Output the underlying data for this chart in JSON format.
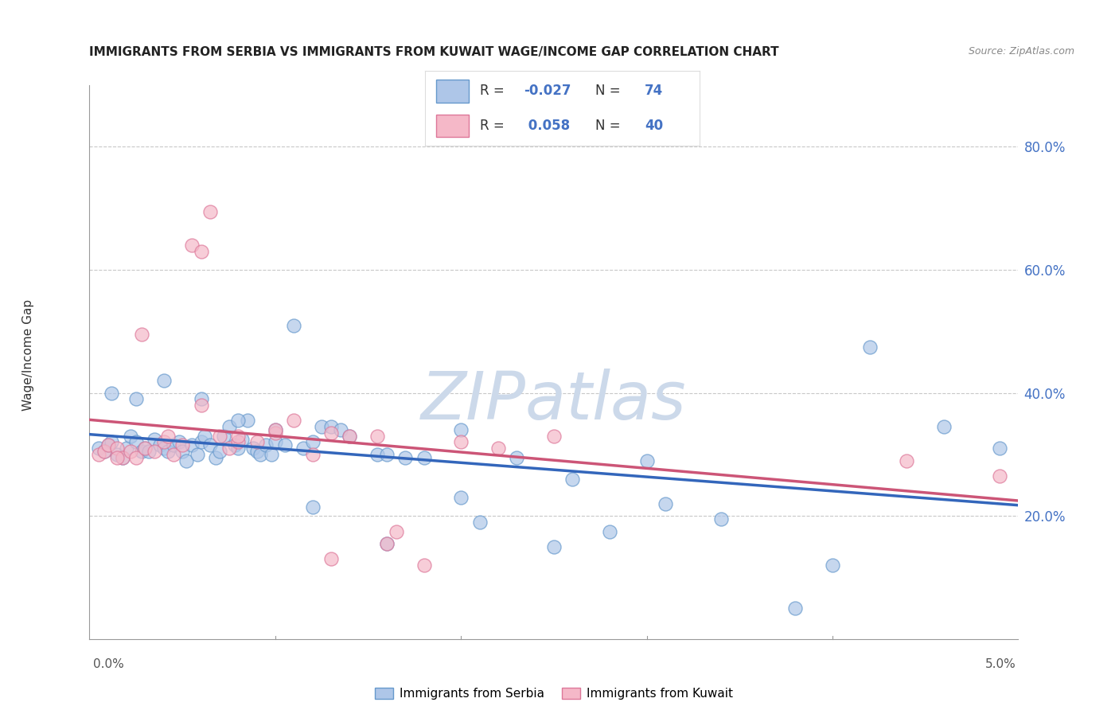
{
  "title": "IMMIGRANTS FROM SERBIA VS IMMIGRANTS FROM KUWAIT WAGE/INCOME GAP CORRELATION CHART",
  "source": "Source: ZipAtlas.com",
  "ylabel": "Wage/Income Gap",
  "watermark": "ZIPatlas",
  "serbia_color": "#aec6e8",
  "serbia_edge_color": "#6699cc",
  "serbia_line_color": "#3366bb",
  "kuwait_color": "#f5b8c8",
  "kuwait_edge_color": "#dd7799",
  "kuwait_line_color": "#cc5577",
  "serbia_R": -0.027,
  "serbia_N": 74,
  "kuwait_R": 0.058,
  "kuwait_N": 40,
  "serbia_x": [
    0.0005,
    0.0008,
    0.001,
    0.0012,
    0.0015,
    0.0018,
    0.002,
    0.0022,
    0.0025,
    0.0028,
    0.003,
    0.0032,
    0.0035,
    0.0038,
    0.004,
    0.0042,
    0.0045,
    0.0048,
    0.005,
    0.0052,
    0.0055,
    0.0058,
    0.006,
    0.0062,
    0.0065,
    0.0068,
    0.007,
    0.0072,
    0.0075,
    0.0078,
    0.008,
    0.0082,
    0.0085,
    0.0088,
    0.009,
    0.0092,
    0.0095,
    0.0098,
    0.01,
    0.0105,
    0.011,
    0.0115,
    0.012,
    0.0125,
    0.013,
    0.0135,
    0.014,
    0.0155,
    0.016,
    0.017,
    0.018,
    0.02,
    0.021,
    0.023,
    0.025,
    0.028,
    0.03,
    0.034,
    0.038,
    0.042,
    0.0012,
    0.0025,
    0.004,
    0.006,
    0.008,
    0.01,
    0.012,
    0.016,
    0.02,
    0.026,
    0.031,
    0.04,
    0.046,
    0.049
  ],
  "serbia_y": [
    0.31,
    0.305,
    0.315,
    0.32,
    0.3,
    0.295,
    0.31,
    0.33,
    0.32,
    0.305,
    0.31,
    0.305,
    0.325,
    0.315,
    0.31,
    0.305,
    0.315,
    0.32,
    0.305,
    0.29,
    0.315,
    0.3,
    0.32,
    0.33,
    0.315,
    0.295,
    0.305,
    0.33,
    0.345,
    0.315,
    0.31,
    0.325,
    0.355,
    0.31,
    0.305,
    0.3,
    0.315,
    0.3,
    0.32,
    0.315,
    0.51,
    0.31,
    0.32,
    0.345,
    0.345,
    0.34,
    0.33,
    0.3,
    0.3,
    0.295,
    0.295,
    0.23,
    0.19,
    0.295,
    0.15,
    0.175,
    0.29,
    0.195,
    0.05,
    0.475,
    0.4,
    0.39,
    0.42,
    0.39,
    0.355,
    0.34,
    0.215,
    0.155,
    0.34,
    0.26,
    0.22,
    0.12,
    0.345,
    0.31
  ],
  "kuwait_x": [
    0.0005,
    0.0008,
    0.001,
    0.0015,
    0.0018,
    0.0022,
    0.0025,
    0.003,
    0.0035,
    0.004,
    0.0045,
    0.005,
    0.0055,
    0.006,
    0.0065,
    0.007,
    0.0075,
    0.008,
    0.009,
    0.01,
    0.011,
    0.012,
    0.013,
    0.014,
    0.0155,
    0.0165,
    0.018,
    0.02,
    0.022,
    0.025,
    0.0015,
    0.0028,
    0.0042,
    0.006,
    0.008,
    0.01,
    0.013,
    0.016,
    0.044,
    0.049
  ],
  "kuwait_y": [
    0.3,
    0.305,
    0.315,
    0.31,
    0.295,
    0.305,
    0.295,
    0.31,
    0.305,
    0.32,
    0.3,
    0.315,
    0.64,
    0.63,
    0.695,
    0.33,
    0.31,
    0.32,
    0.32,
    0.335,
    0.355,
    0.3,
    0.335,
    0.33,
    0.33,
    0.175,
    0.12,
    0.32,
    0.31,
    0.33,
    0.295,
    0.495,
    0.33,
    0.38,
    0.33,
    0.34,
    0.13,
    0.155,
    0.29,
    0.265
  ],
  "ylim": [
    0.0,
    0.9
  ],
  "xlim": [
    0.0,
    0.05
  ],
  "yticks": [
    0.2,
    0.4,
    0.6,
    0.8
  ],
  "ytick_labels": [
    "20.0%",
    "40.0%",
    "60.0%",
    "80.0%"
  ],
  "right_axis_color": "#4472c4",
  "grid_color": "#c8c8c8",
  "bg_color": "#ffffff",
  "title_fontsize": 11,
  "source_fontsize": 9,
  "watermark_color": "#ccd9ea",
  "watermark_fontsize": 60,
  "legend_text_color": "#4472c4",
  "legend_label_color": "#333333"
}
